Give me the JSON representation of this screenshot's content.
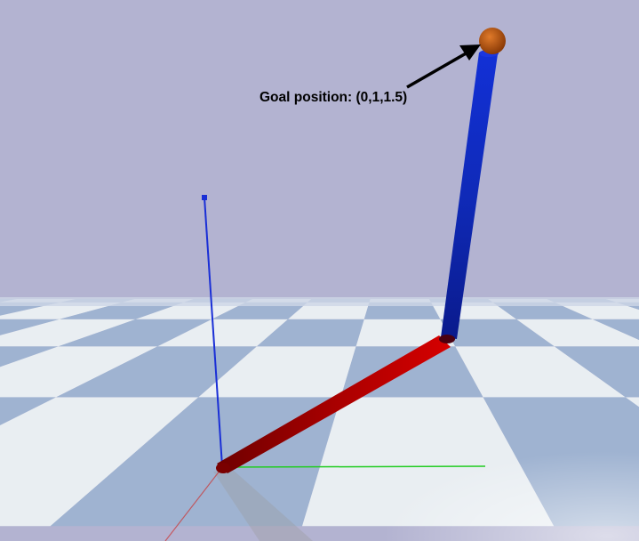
{
  "annotation": {
    "text": "Goal position: (0,1,1.5)"
  },
  "colors": {
    "sky": "#b3b3d1",
    "floor_light": "#e9eef2",
    "floor_dark": "#9fb3d1",
    "link_lower": "#b30000",
    "link_upper": "#0a1fb0",
    "goal_marker": "#c15a0c",
    "axis_z": "#1a2fd6",
    "axis_y": "#22cc22"
  },
  "icons": {
    "goal": "goal-sphere",
    "arrow": "pointer-arrow"
  }
}
